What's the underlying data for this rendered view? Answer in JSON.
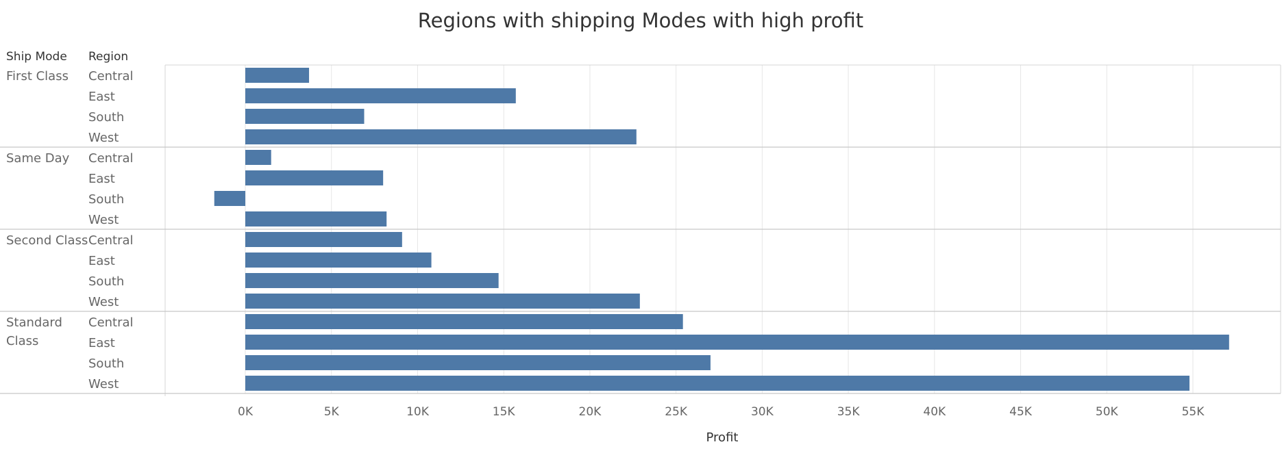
{
  "chart_data": {
    "type": "bar",
    "orientation": "horizontal",
    "title": "Regions with shipping Modes with high profit",
    "row_headers": [
      "Ship Mode",
      "Region"
    ],
    "xlabel": "Profit",
    "xlim": [
      -1800,
      60000
    ],
    "x_ticks": [
      0,
      5000,
      10000,
      15000,
      20000,
      25000,
      30000,
      35000,
      40000,
      45000,
      50000,
      55000
    ],
    "x_tick_labels": [
      "0K",
      "5K",
      "10K",
      "15K",
      "20K",
      "25K",
      "30K",
      "35K",
      "40K",
      "45K",
      "50K",
      "55K"
    ],
    "bar_color": "#4e79a7",
    "grid": true,
    "groups": [
      {
        "name": "First Class",
        "label_lines": [
          "First Class"
        ],
        "rows": [
          {
            "region": "Central",
            "value": 3700
          },
          {
            "region": "East",
            "value": 15700
          },
          {
            "region": "South",
            "value": 6900
          },
          {
            "region": "West",
            "value": 22700
          }
        ]
      },
      {
        "name": "Same Day",
        "label_lines": [
          "Same Day"
        ],
        "rows": [
          {
            "region": "Central",
            "value": 1500
          },
          {
            "region": "East",
            "value": 8000
          },
          {
            "region": "South",
            "value": -1800
          },
          {
            "region": "West",
            "value": 8200
          }
        ]
      },
      {
        "name": "Second Class",
        "label_lines": [
          "Second Class"
        ],
        "rows": [
          {
            "region": "Central",
            "value": 9100
          },
          {
            "region": "East",
            "value": 10800
          },
          {
            "region": "South",
            "value": 14700
          },
          {
            "region": "West",
            "value": 22900
          }
        ]
      },
      {
        "name": "Standard Class",
        "label_lines": [
          "Standard",
          "Class"
        ],
        "rows": [
          {
            "region": "Central",
            "value": 25400
          },
          {
            "region": "East",
            "value": 57100
          },
          {
            "region": "South",
            "value": 27000
          },
          {
            "region": "West",
            "value": 54800
          }
        ]
      }
    ]
  }
}
